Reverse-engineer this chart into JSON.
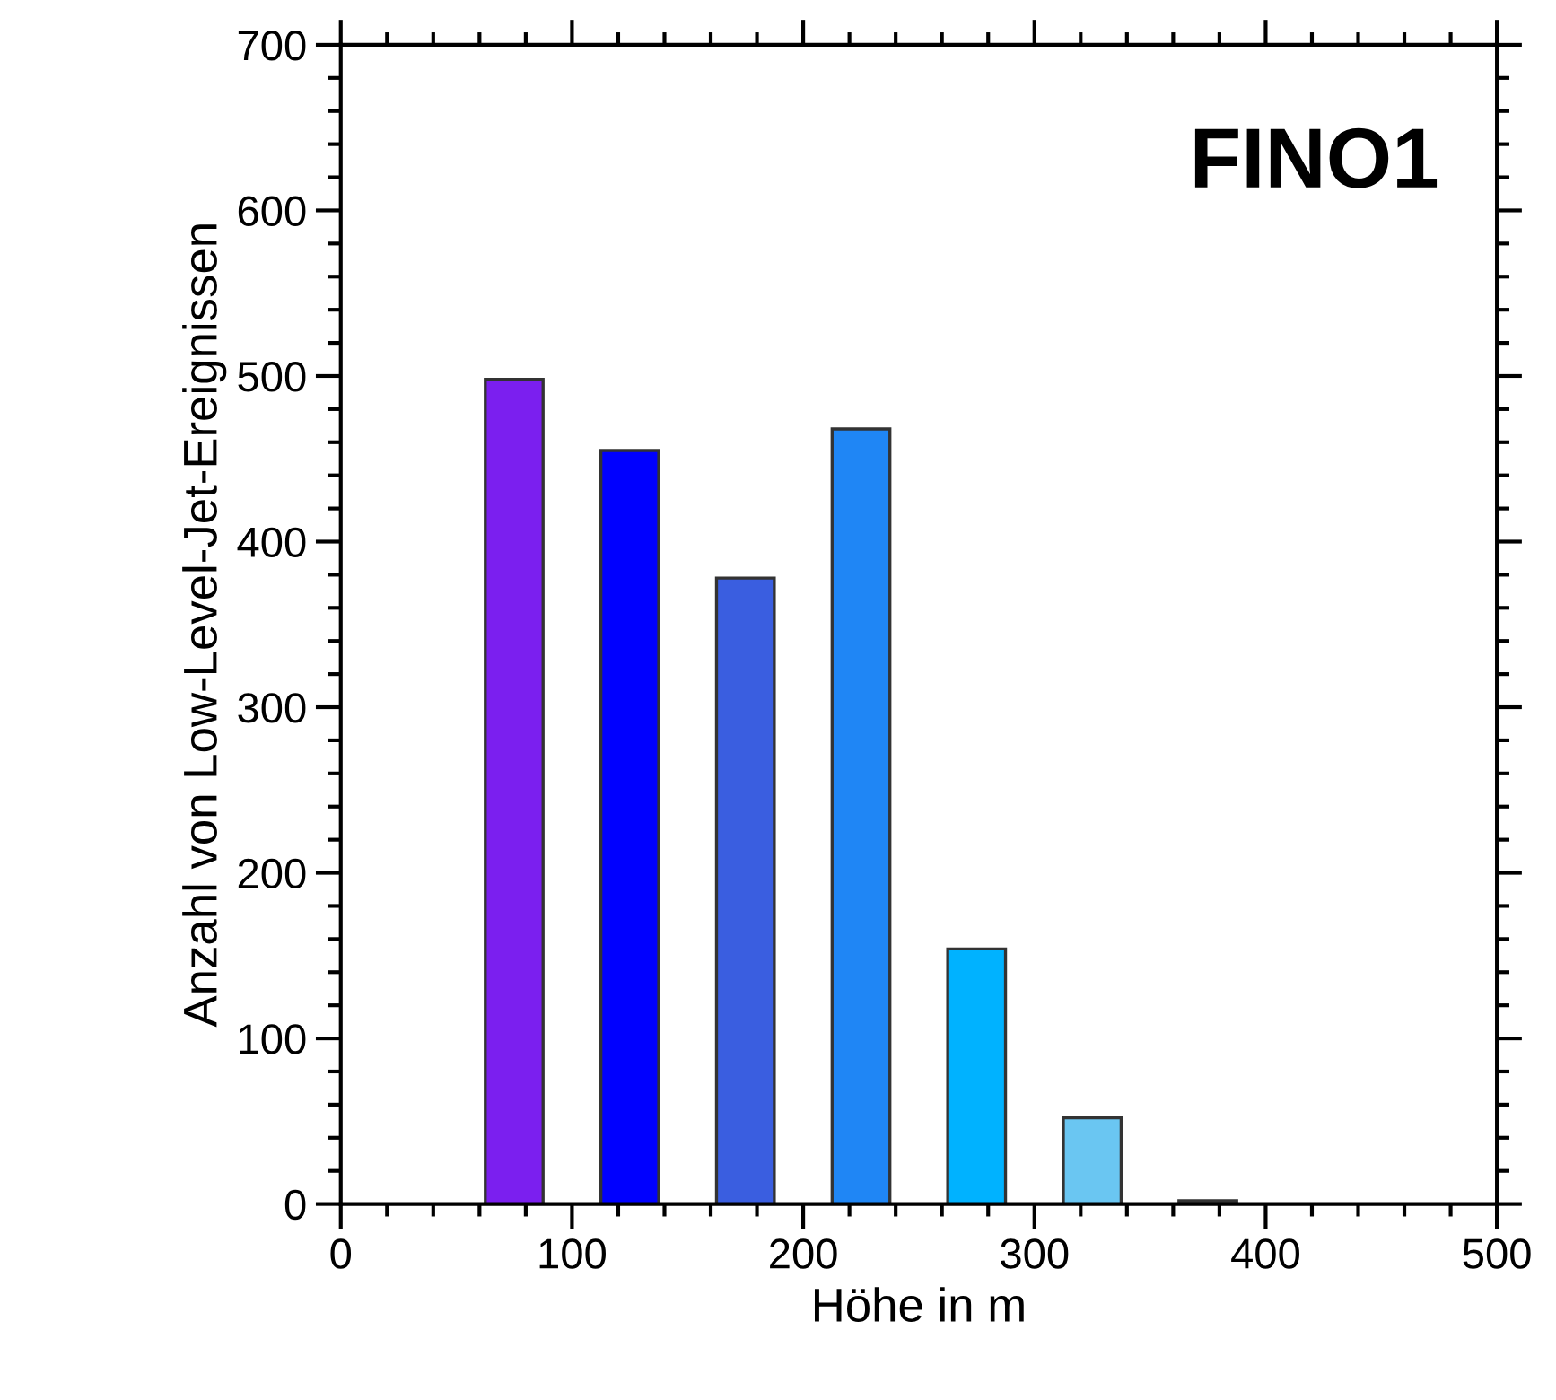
{
  "chart_data": {
    "type": "bar",
    "xlabel": "Höhe in m",
    "ylabel": "Anzahl von Low-Level-Jet-Ereignissen",
    "x": [
      75,
      125,
      175,
      225,
      275,
      325,
      375
    ],
    "values": [
      498,
      455,
      378,
      468,
      154,
      52,
      2
    ],
    "colors": [
      "#7b1fef",
      "#0000ff",
      "#3a5ee0",
      "#1f86f5",
      "#00b2ff",
      "#6ac6f2",
      "#3a3a3a"
    ],
    "xlim": [
      0,
      500
    ],
    "xticks": [
      0,
      100,
      200,
      300,
      400,
      500
    ],
    "ylim": [
      0,
      700
    ],
    "yticks": [
      0,
      100,
      200,
      300,
      400,
      500,
      600,
      700
    ],
    "grid": false,
    "annotations": [
      "FINO1"
    ]
  }
}
